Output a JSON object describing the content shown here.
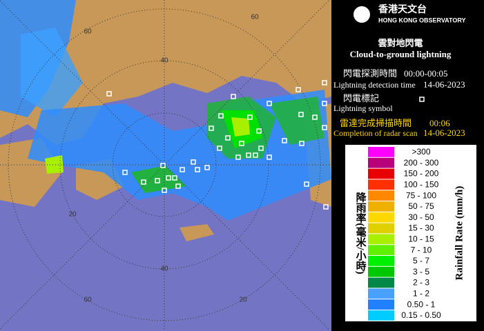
{
  "header": {
    "org_zh": "香港天文台",
    "org_en": "HONG KONG OBSERVATORY"
  },
  "title": {
    "zh": "雲對地閃電",
    "en": "Cloud-to-ground lightning"
  },
  "detection_time": {
    "label_zh": "閃電探測時間",
    "time": "00:00-00:05",
    "label_en": "Lightning detection time",
    "date": "14-06-2023"
  },
  "symbol": {
    "label_zh": "閃電標記",
    "label_en": "Lightning symbol"
  },
  "radar_scan": {
    "label_zh": "雷達完成掃描時間",
    "time": "00:06",
    "label_en": "Completion of radar scan",
    "date": "14-06-2023"
  },
  "legend": {
    "title_zh": "降雨率(毫米/小時)",
    "title_en": "Rainfall Rate (mm/h)",
    "items": [
      {
        "label": ">300",
        "color": "#ff00ff"
      },
      {
        "label": "200 - 300",
        "color": "#b8007a"
      },
      {
        "label": "150 - 200",
        "color": "#e80000"
      },
      {
        "label": "100 - 150",
        "color": "#ff3000"
      },
      {
        "label": "75 - 100",
        "color": "#ff8800"
      },
      {
        "label": "50 - 75",
        "color": "#f0b000"
      },
      {
        "label": "30 - 50",
        "color": "#ffd800"
      },
      {
        "label": "15 - 30",
        "color": "#e0d000"
      },
      {
        "label": "10 - 15",
        "color": "#a8f000"
      },
      {
        "label": "7 - 10",
        "color": "#60f000"
      },
      {
        "label": "5 - 7",
        "color": "#00f000"
      },
      {
        "label": "3 - 5",
        "color": "#00c800"
      },
      {
        "label": "2 - 3",
        "color": "#008848"
      },
      {
        "label": "1 - 2",
        "color": "#48a0ff"
      },
      {
        "label": "0.50 - 1",
        "color": "#2080ff"
      },
      {
        "label": "0.15 - 0.50",
        "color": "#00ccff"
      }
    ]
  },
  "map": {
    "ring_labels": [
      "60",
      "40",
      "60",
      "20",
      "40",
      "60",
      "20"
    ]
  }
}
